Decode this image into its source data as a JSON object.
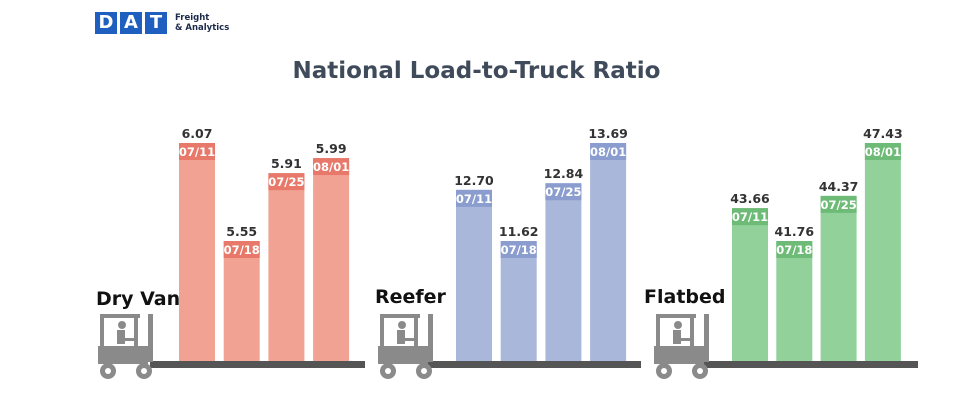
{
  "logo": {
    "letters": [
      "D",
      "A",
      "T"
    ],
    "line1": "Freight",
    "line2": "& Analytics"
  },
  "chart_data": {
    "type": "bar",
    "title": "National Load-to-Truck Ratio",
    "groups": [
      {
        "name": "Dry Van",
        "color": "#f2a293",
        "label_color": "#e8796a",
        "categories": [
          "07/11",
          "07/18",
          "07/25",
          "08/01"
        ],
        "values": [
          6.07,
          5.55,
          5.91,
          5.99
        ]
      },
      {
        "name": "Reefer",
        "color": "#a9b7db",
        "label_color": "#8b9dcf",
        "categories": [
          "07/11",
          "07/18",
          "07/25",
          "08/01"
        ],
        "values": [
          12.7,
          11.62,
          12.84,
          13.69
        ]
      },
      {
        "name": "Flatbed",
        "color": "#92d19a",
        "label_color": "#6dbb77",
        "categories": [
          "07/11",
          "07/18",
          "07/25",
          "08/01"
        ],
        "values": [
          43.66,
          41.76,
          44.37,
          47.43
        ]
      }
    ],
    "icon": "forklift-icon"
  }
}
